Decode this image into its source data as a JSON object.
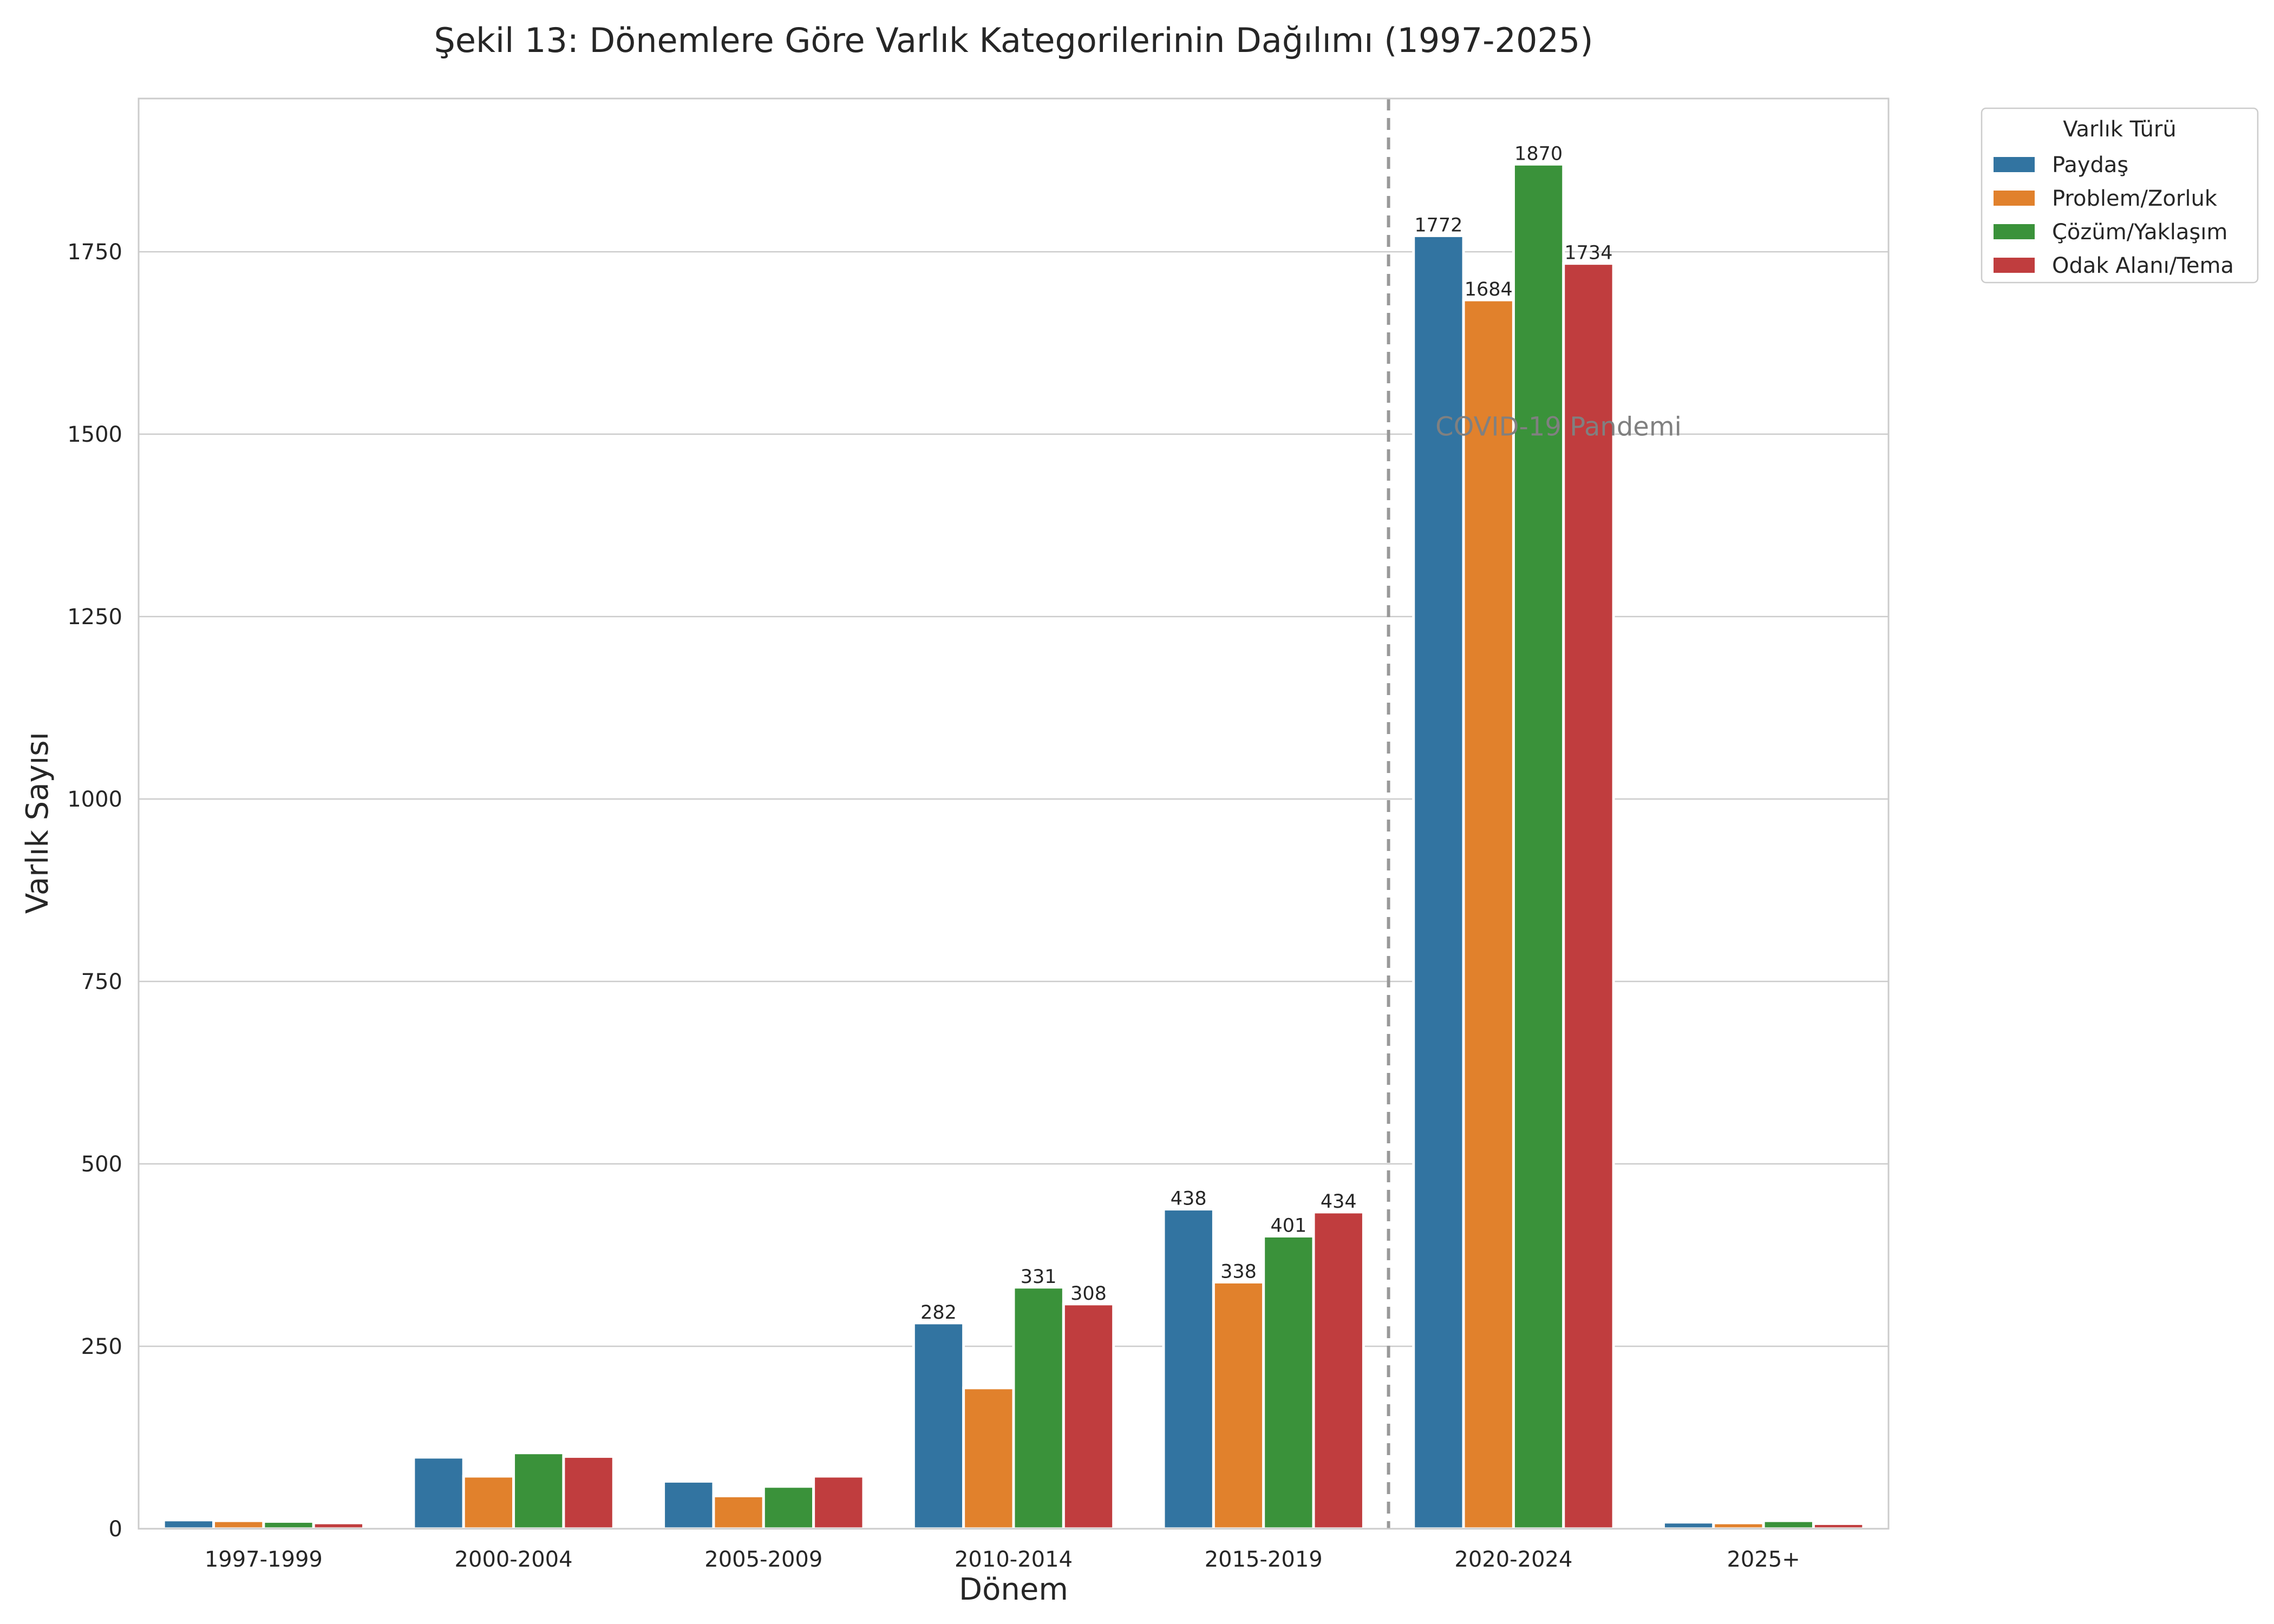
{
  "chart_data": {
    "type": "bar",
    "title": "Şekil 13: Dönemlere Göre Varlık Kategorilerinin Dağılımı (1997-2025)",
    "xlabel": "Dönem",
    "ylabel": "Varlık Sayısı",
    "categories": [
      "1997-1999",
      "2000-2004",
      "2005-2009",
      "2010-2014",
      "2015-2019",
      "2020-2024",
      "2025+"
    ],
    "ylim": [
      0,
      1960
    ],
    "yticks": [
      0,
      250,
      500,
      750,
      1000,
      1250,
      1500,
      1750
    ],
    "grid": "horizontal",
    "legend": {
      "title": "Varlık Türü",
      "placement": "outside-top-right"
    },
    "series": [
      {
        "name": "Paydaş",
        "color": "#3274a1",
        "values": [
          12,
          98,
          65,
          282,
          438,
          1772,
          9
        ],
        "labels": [
          "",
          "",
          "",
          "282",
          "438",
          "1772",
          ""
        ]
      },
      {
        "name": "Problem/Zorluk",
        "color": "#e1812c",
        "values": [
          11,
          72,
          45,
          193,
          338,
          1684,
          8
        ],
        "labels": [
          "",
          "",
          "",
          "",
          "338",
          "1684",
          ""
        ]
      },
      {
        "name": "Çözüm/Yaklaşım",
        "color": "#3a923a",
        "values": [
          10,
          104,
          58,
          331,
          401,
          1870,
          11
        ],
        "labels": [
          "",
          "",
          "",
          "331",
          "401",
          "1870",
          ""
        ]
      },
      {
        "name": "Odak Alanı/Tema",
        "color": "#c03d3e",
        "values": [
          8,
          99,
          72,
          308,
          434,
          1734,
          7
        ],
        "labels": [
          "",
          "",
          "",
          "308",
          "434",
          "1734",
          ""
        ]
      }
    ],
    "annotations": [
      {
        "text": "COVID-19 Pandemi",
        "x": 5.18,
        "y": 1510,
        "color": "#808080"
      }
    ],
    "reference_lines": [
      {
        "orientation": "vertical",
        "x": 4.5,
        "style": "dashed",
        "color": "#999999"
      }
    ]
  }
}
